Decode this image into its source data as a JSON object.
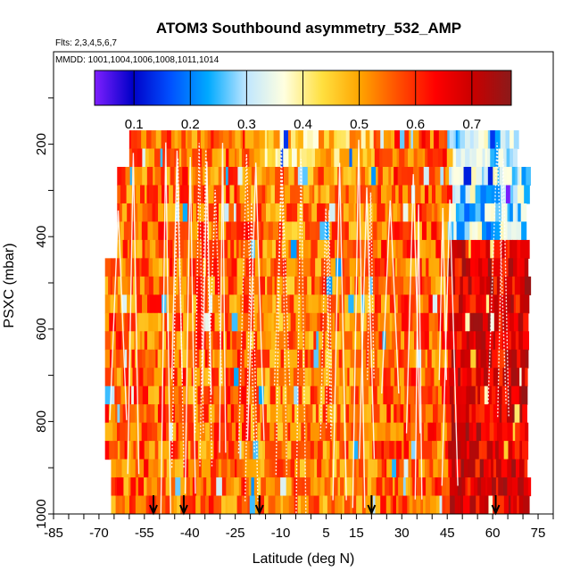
{
  "chart_data": {
    "type": "heatmap",
    "title": "ATOM3 Southbound asymmetry_532_AMP",
    "subtitle_flights": "Flts: 2,3,4,5,6,7",
    "subtitle_dates": "MMDD: 1001,1004,1006,1008,1011,1014",
    "xlabel": "Latitude (deg N)",
    "ylabel": "PSXC (mbar)",
    "xlim": [
      -85,
      80
    ],
    "ylim": [
      1000,
      0
    ],
    "x_ticks": [
      "-85",
      "-70",
      "-55",
      "-40",
      "-25",
      "-10",
      "5",
      "15",
      "30",
      "45",
      "60",
      "75"
    ],
    "y_ticks": [
      "200",
      "400",
      "600",
      "800",
      "1000"
    ],
    "colorbar": {
      "min": 0.03,
      "max": 0.77,
      "ticks": [
        "0.1",
        "0.2",
        "0.3",
        "0.4",
        "0.5",
        "0.6",
        "0.7"
      ],
      "colors": [
        "#7f1fff",
        "#0000c8",
        "#0050ff",
        "#00aaff",
        "#bfe6ff",
        "#ffffe0",
        "#ffe040",
        "#ffa500",
        "#ff5000",
        "#ff0000",
        "#c80000",
        "#8b1a1a"
      ]
    },
    "profile_arrow_latitudes": [
      -52,
      -42,
      -17,
      20,
      61
    ],
    "field": {
      "latitude_range": [
        -68,
        72
      ],
      "pressure_range": [
        170,
        1000
      ],
      "regions": [
        {
          "lat": [
            -68,
            -20
          ],
          "p": [
            170,
            1000
          ],
          "value": 0.55
        },
        {
          "lat": [
            -20,
            20
          ],
          "p": [
            170,
            230
          ],
          "value": 0.45
        },
        {
          "lat": [
            -20,
            20
          ],
          "p": [
            230,
            1000
          ],
          "value": 0.53
        },
        {
          "lat": [
            20,
            45
          ],
          "p": [
            170,
            1000
          ],
          "value": 0.56
        },
        {
          "lat": [
            45,
            72
          ],
          "p": [
            170,
            420
          ],
          "value": 0.3
        },
        {
          "lat": [
            45,
            72
          ],
          "p": [
            420,
            1000
          ],
          "value": 0.67
        }
      ]
    }
  }
}
